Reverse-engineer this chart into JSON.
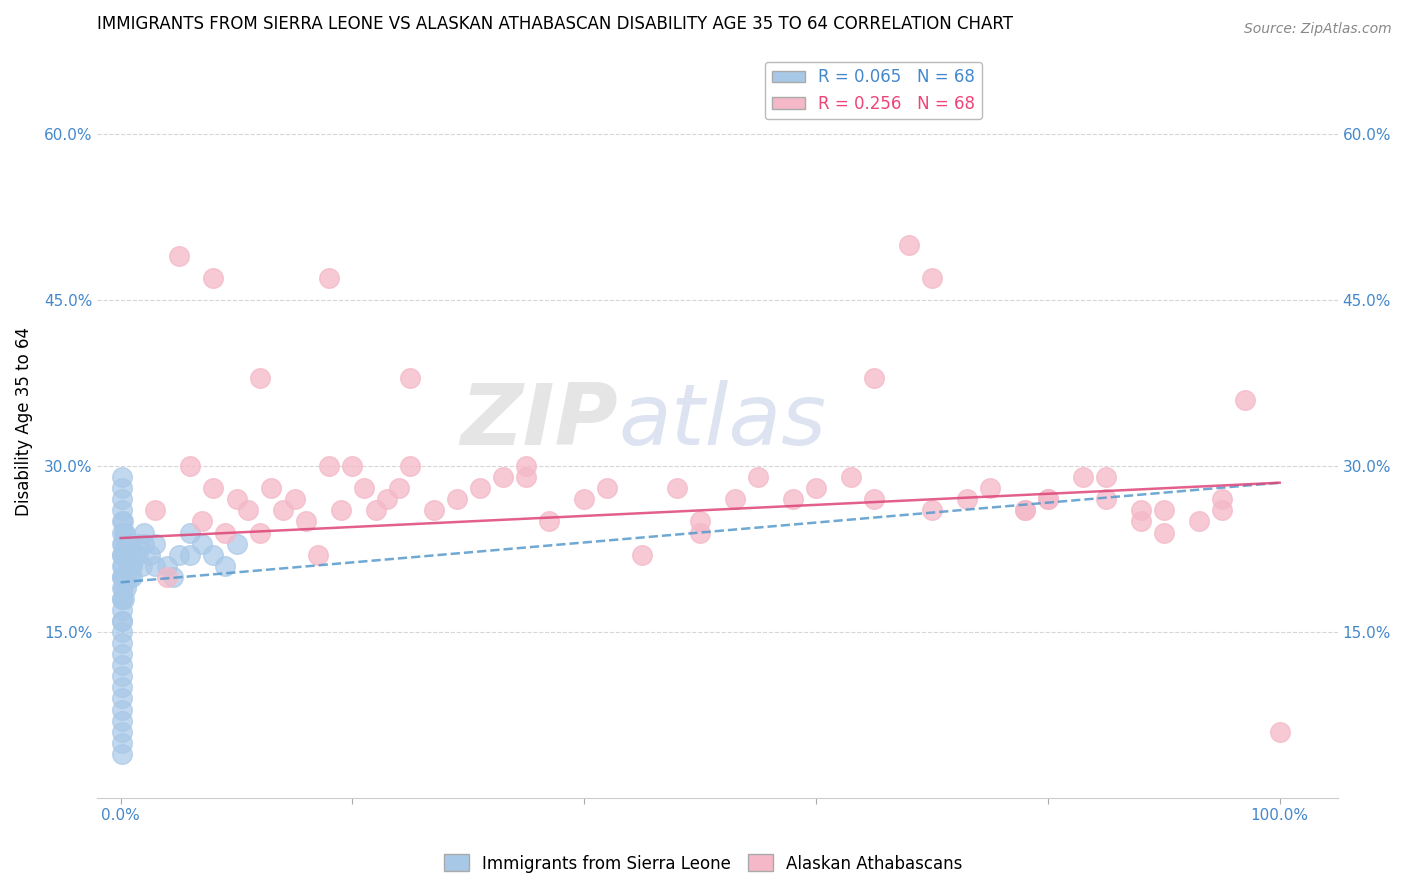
{
  "title": "IMMIGRANTS FROM SIERRA LEONE VS ALASKAN ATHABASCAN DISABILITY AGE 35 TO 64 CORRELATION CHART",
  "source": "Source: ZipAtlas.com",
  "ylabel": "Disability Age 35 to 64",
  "legend1_label": "Immigrants from Sierra Leone",
  "legend2_label": "Alaskan Athabascans",
  "R1": 0.065,
  "N1": 68,
  "R2": 0.256,
  "N2": 68,
  "xlim": [
    -0.02,
    1.05
  ],
  "ylim": [
    0.0,
    0.68
  ],
  "yticks": [
    0.15,
    0.3,
    0.45,
    0.6
  ],
  "ytick_labels": [
    "15.0%",
    "30.0%",
    "45.0%",
    "60.0%"
  ],
  "xticks": [
    0.0,
    0.2,
    0.4,
    0.6,
    0.8,
    1.0
  ],
  "xtick_labels": [
    "0.0%",
    "",
    "",
    "",
    "",
    "100.0%"
  ],
  "color_blue": "#a8c8e8",
  "color_pink": "#f4b8c8",
  "trend_blue_color": "#5599cc",
  "trend_pink_color": "#dd4477",
  "title_fontsize": 12,
  "source_fontsize": 10,
  "blue_x": [
    0.001,
    0.001,
    0.001,
    0.001,
    0.001,
    0.001,
    0.001,
    0.001,
    0.001,
    0.001,
    0.001,
    0.001,
    0.001,
    0.001,
    0.001,
    0.001,
    0.001,
    0.001,
    0.001,
    0.001,
    0.001,
    0.001,
    0.001,
    0.001,
    0.001,
    0.001,
    0.001,
    0.001,
    0.001,
    0.001,
    0.002,
    0.002,
    0.002,
    0.003,
    0.003,
    0.003,
    0.004,
    0.004,
    0.005,
    0.005,
    0.006,
    0.007,
    0.008,
    0.009,
    0.01,
    0.012,
    0.015,
    0.018,
    0.02,
    0.025,
    0.03,
    0.04,
    0.05,
    0.06,
    0.07,
    0.08,
    0.09,
    0.1,
    0.005,
    0.008,
    0.01,
    0.015,
    0.02,
    0.03,
    0.045,
    0.06,
    0.002,
    0.003
  ],
  "blue_y": [
    0.24,
    0.22,
    0.21,
    0.2,
    0.19,
    0.18,
    0.17,
    0.16,
    0.15,
    0.14,
    0.13,
    0.12,
    0.11,
    0.1,
    0.09,
    0.08,
    0.07,
    0.06,
    0.05,
    0.04,
    0.25,
    0.23,
    0.26,
    0.28,
    0.27,
    0.29,
    0.22,
    0.2,
    0.18,
    0.16,
    0.23,
    0.21,
    0.19,
    0.22,
    0.2,
    0.18,
    0.24,
    0.22,
    0.23,
    0.2,
    0.21,
    0.22,
    0.23,
    0.21,
    0.2,
    0.22,
    0.23,
    0.21,
    0.24,
    0.22,
    0.23,
    0.21,
    0.22,
    0.24,
    0.23,
    0.22,
    0.21,
    0.23,
    0.19,
    0.2,
    0.21,
    0.22,
    0.23,
    0.21,
    0.2,
    0.22,
    0.25,
    0.24
  ],
  "pink_x": [
    0.03,
    0.04,
    0.05,
    0.06,
    0.07,
    0.08,
    0.09,
    0.1,
    0.11,
    0.12,
    0.13,
    0.14,
    0.15,
    0.16,
    0.17,
    0.18,
    0.19,
    0.2,
    0.21,
    0.22,
    0.23,
    0.24,
    0.25,
    0.27,
    0.29,
    0.31,
    0.33,
    0.35,
    0.37,
    0.4,
    0.42,
    0.45,
    0.48,
    0.5,
    0.53,
    0.55,
    0.58,
    0.6,
    0.63,
    0.65,
    0.68,
    0.7,
    0.73,
    0.75,
    0.78,
    0.8,
    0.83,
    0.85,
    0.88,
    0.9,
    0.93,
    0.95,
    0.97,
    1.0,
    0.08,
    0.12,
    0.18,
    0.25,
    0.35,
    0.5,
    0.65,
    0.78,
    0.88,
    0.95,
    0.85,
    0.9,
    0.8,
    0.7
  ],
  "pink_y": [
    0.26,
    0.2,
    0.49,
    0.3,
    0.25,
    0.28,
    0.24,
    0.27,
    0.26,
    0.24,
    0.28,
    0.26,
    0.27,
    0.25,
    0.22,
    0.3,
    0.26,
    0.3,
    0.28,
    0.26,
    0.27,
    0.28,
    0.38,
    0.26,
    0.27,
    0.28,
    0.29,
    0.29,
    0.25,
    0.27,
    0.28,
    0.22,
    0.28,
    0.24,
    0.27,
    0.29,
    0.27,
    0.28,
    0.29,
    0.38,
    0.5,
    0.47,
    0.27,
    0.28,
    0.26,
    0.27,
    0.29,
    0.29,
    0.25,
    0.24,
    0.25,
    0.27,
    0.36,
    0.06,
    0.47,
    0.38,
    0.47,
    0.3,
    0.3,
    0.25,
    0.27,
    0.26,
    0.26,
    0.26,
    0.27,
    0.26,
    0.27,
    0.26
  ]
}
